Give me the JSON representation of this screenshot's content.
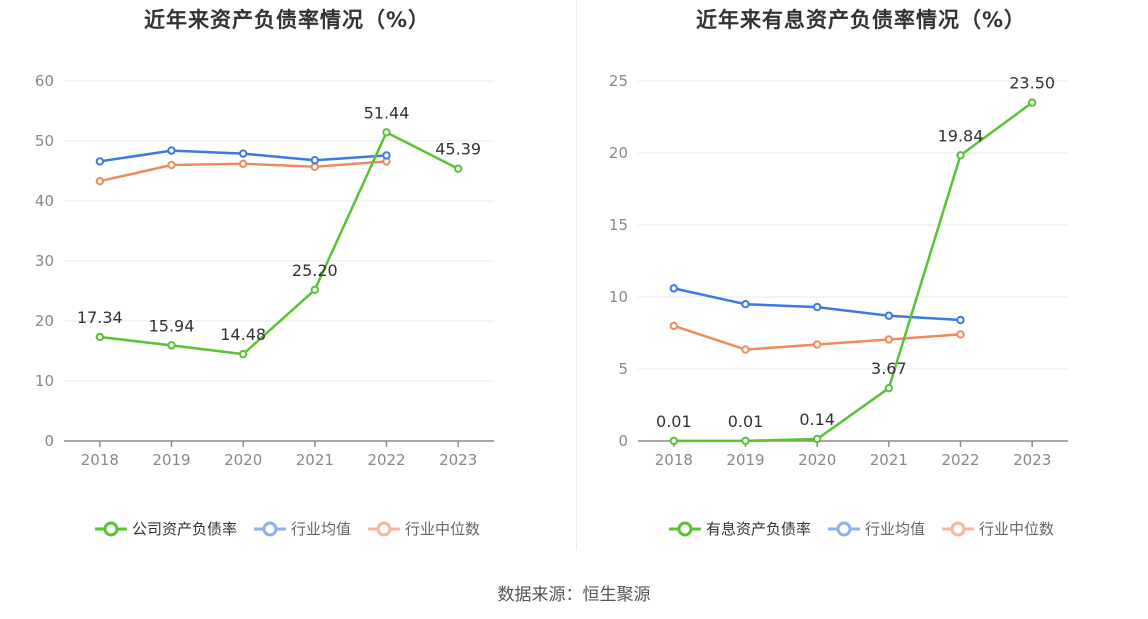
{
  "source_text": "数据来源：恒生聚源",
  "colors": {
    "company": "#5cc135",
    "industry_avg": "#3f78e0",
    "industry_median": "#f08a5d"
  },
  "chart_data": [
    {
      "type": "line",
      "title": "近年来资产负债率情况（%）",
      "x": [
        "2018",
        "2019",
        "2020",
        "2021",
        "2022",
        "2023"
      ],
      "ylim": [
        0,
        60
      ],
      "yticks": [
        0,
        10,
        20,
        30,
        40,
        50,
        60
      ],
      "grid": true,
      "legend_position": "bottom",
      "series": [
        {
          "name": "公司资产负债率",
          "color": "#5cc135",
          "values": [
            17.34,
            15.94,
            14.48,
            25.2,
            51.44,
            45.39
          ],
          "labels": [
            "17.34",
            "15.94",
            "14.48",
            "25.20",
            "51.44",
            "45.39"
          ]
        },
        {
          "name": "行业均值",
          "color": "#3f78e0",
          "values": [
            46.6,
            48.4,
            47.9,
            46.8,
            47.6,
            null
          ]
        },
        {
          "name": "行业中位数",
          "color": "#f08a5d",
          "values": [
            43.3,
            46.0,
            46.2,
            45.7,
            46.6,
            null
          ]
        }
      ]
    },
    {
      "type": "line",
      "title": "近年来有息资产负债率情况（%）",
      "x": [
        "2018",
        "2019",
        "2020",
        "2021",
        "2022",
        "2023"
      ],
      "ylim": [
        0,
        25
      ],
      "yticks": [
        0,
        5,
        10,
        15,
        20,
        25
      ],
      "grid": true,
      "legend_position": "bottom",
      "series": [
        {
          "name": "有息资产负债率",
          "color": "#5cc135",
          "values": [
            0.01,
            0.01,
            0.14,
            3.67,
            19.84,
            23.5
          ],
          "labels": [
            "0.01",
            "0.01",
            "0.14",
            "3.67",
            "19.84",
            "23.50"
          ]
        },
        {
          "name": "行业均值",
          "color": "#3f78e0",
          "values": [
            10.6,
            9.5,
            9.3,
            8.7,
            8.4,
            null
          ]
        },
        {
          "name": "行业中位数",
          "color": "#f08a5d",
          "values": [
            8.0,
            6.35,
            6.7,
            7.05,
            7.4,
            null
          ]
        }
      ]
    }
  ]
}
